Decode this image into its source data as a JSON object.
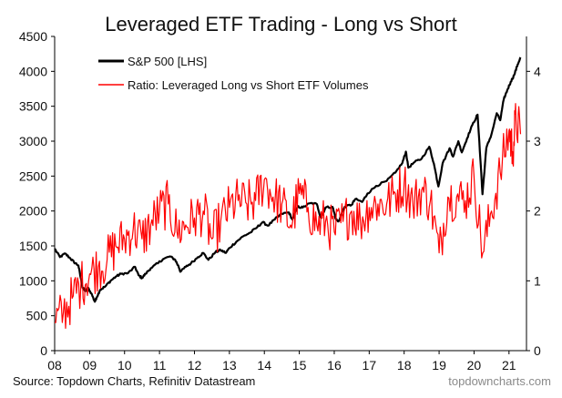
{
  "chart_data": {
    "type": "line",
    "title": "Leveraged ETF Trading - Long vs Short",
    "x_ticks": [
      "08",
      "09",
      "10",
      "11",
      "12",
      "13",
      "14",
      "15",
      "16",
      "17",
      "18",
      "19",
      "20",
      "21"
    ],
    "x_range": [
      2008.0,
      2021.5
    ],
    "y_left": {
      "ticks": [
        0,
        500,
        1000,
        1500,
        2000,
        2500,
        3000,
        3500,
        4000,
        4500
      ],
      "range": [
        0,
        4500
      ]
    },
    "y_right": {
      "ticks": [
        0,
        1,
        2,
        3,
        4
      ],
      "range": [
        0,
        4.5
      ]
    },
    "grid": false,
    "legend_placement": "top-left",
    "colors": {
      "sp500": "#000000",
      "ratio": "#ff0000"
    },
    "series": [
      {
        "name": "S&P 500 [LHS]",
        "axis": "left",
        "points": [
          [
            2008.0,
            1460
          ],
          [
            2008.15,
            1340
          ],
          [
            2008.3,
            1390
          ],
          [
            2008.45,
            1320
          ],
          [
            2008.55,
            1270
          ],
          [
            2008.68,
            1220
          ],
          [
            2008.75,
            1030
          ],
          [
            2008.8,
            900
          ],
          [
            2008.88,
            850
          ],
          [
            2008.95,
            900
          ],
          [
            2009.05,
            820
          ],
          [
            2009.15,
            700
          ],
          [
            2009.2,
            760
          ],
          [
            2009.3,
            870
          ],
          [
            2009.45,
            920
          ],
          [
            2009.6,
            1000
          ],
          [
            2009.75,
            1060
          ],
          [
            2009.9,
            1100
          ],
          [
            2010.1,
            1110
          ],
          [
            2010.3,
            1200
          ],
          [
            2010.4,
            1080
          ],
          [
            2010.5,
            1040
          ],
          [
            2010.6,
            1100
          ],
          [
            2010.75,
            1180
          ],
          [
            2010.95,
            1250
          ],
          [
            2011.1,
            1310
          ],
          [
            2011.3,
            1350
          ],
          [
            2011.45,
            1300
          ],
          [
            2011.55,
            1200
          ],
          [
            2011.6,
            1130
          ],
          [
            2011.75,
            1200
          ],
          [
            2011.9,
            1250
          ],
          [
            2012.1,
            1340
          ],
          [
            2012.25,
            1400
          ],
          [
            2012.4,
            1300
          ],
          [
            2012.6,
            1410
          ],
          [
            2012.75,
            1440
          ],
          [
            2012.9,
            1400
          ],
          [
            2013.0,
            1470
          ],
          [
            2013.2,
            1560
          ],
          [
            2013.4,
            1640
          ],
          [
            2013.6,
            1690
          ],
          [
            2013.8,
            1770
          ],
          [
            2013.95,
            1840
          ],
          [
            2014.1,
            1790
          ],
          [
            2014.3,
            1880
          ],
          [
            2014.5,
            1960
          ],
          [
            2014.7,
            1980
          ],
          [
            2014.8,
            1880
          ],
          [
            2014.95,
            2060
          ],
          [
            2015.1,
            2050
          ],
          [
            2015.3,
            2110
          ],
          [
            2015.5,
            2100
          ],
          [
            2015.62,
            1900
          ],
          [
            2015.75,
            2050
          ],
          [
            2015.95,
            2060
          ],
          [
            2016.05,
            1880
          ],
          [
            2016.12,
            1850
          ],
          [
            2016.3,
            2060
          ],
          [
            2016.5,
            2090
          ],
          [
            2016.6,
            2170
          ],
          [
            2016.8,
            2130
          ],
          [
            2016.95,
            2250
          ],
          [
            2017.2,
            2360
          ],
          [
            2017.5,
            2430
          ],
          [
            2017.75,
            2550
          ],
          [
            2017.95,
            2690
          ],
          [
            2018.05,
            2850
          ],
          [
            2018.12,
            2620
          ],
          [
            2018.3,
            2700
          ],
          [
            2018.5,
            2750
          ],
          [
            2018.72,
            2920
          ],
          [
            2018.85,
            2680
          ],
          [
            2018.98,
            2350
          ],
          [
            2019.1,
            2680
          ],
          [
            2019.3,
            2900
          ],
          [
            2019.4,
            2780
          ],
          [
            2019.55,
            3000
          ],
          [
            2019.65,
            2840
          ],
          [
            2019.8,
            3040
          ],
          [
            2019.95,
            3230
          ],
          [
            2020.1,
            3380
          ],
          [
            2020.2,
            2600
          ],
          [
            2020.24,
            2240
          ],
          [
            2020.35,
            2900
          ],
          [
            2020.5,
            3100
          ],
          [
            2020.65,
            3400
          ],
          [
            2020.75,
            3300
          ],
          [
            2020.85,
            3600
          ],
          [
            2020.95,
            3730
          ],
          [
            2021.05,
            3850
          ],
          [
            2021.15,
            3950
          ],
          [
            2021.25,
            4100
          ],
          [
            2021.33,
            4200
          ]
        ]
      },
      {
        "name": "Ratio: Leveraged Long vs Short ETF Volumes",
        "axis": "right",
        "points": [
          [
            2008.0,
            0.4
          ],
          [
            2008.25,
            0.55
          ],
          [
            2008.5,
            0.75
          ],
          [
            2008.75,
            0.95
          ],
          [
            2009.0,
            1.1
          ],
          [
            2009.25,
            1.2
          ],
          [
            2009.5,
            1.3
          ],
          [
            2009.75,
            1.5
          ],
          [
            2010.0,
            1.6
          ],
          [
            2010.25,
            1.75
          ],
          [
            2010.5,
            1.6
          ],
          [
            2010.75,
            1.8
          ],
          [
            2011.0,
            2.0
          ],
          [
            2011.25,
            2.1
          ],
          [
            2011.5,
            1.7
          ],
          [
            2011.75,
            1.8
          ],
          [
            2012.0,
            1.9
          ],
          [
            2012.25,
            2.0
          ],
          [
            2012.5,
            1.6
          ],
          [
            2012.75,
            1.85
          ],
          [
            2013.0,
            2.05
          ],
          [
            2013.25,
            2.15
          ],
          [
            2013.5,
            2.1
          ],
          [
            2013.75,
            2.15
          ],
          [
            2014.0,
            2.45
          ],
          [
            2014.25,
            2.2
          ],
          [
            2014.5,
            2.1
          ],
          [
            2014.75,
            1.8
          ],
          [
            2015.0,
            2.25
          ],
          [
            2015.25,
            2.05
          ],
          [
            2015.5,
            1.8
          ],
          [
            2015.75,
            1.85
          ],
          [
            2016.0,
            1.7
          ],
          [
            2016.25,
            1.85
          ],
          [
            2016.5,
            2.0
          ],
          [
            2016.75,
            1.85
          ],
          [
            2017.0,
            2.05
          ],
          [
            2017.25,
            2.1
          ],
          [
            2017.5,
            2.1
          ],
          [
            2017.75,
            2.25
          ],
          [
            2018.0,
            2.4
          ],
          [
            2018.25,
            2.1
          ],
          [
            2018.5,
            2.3
          ],
          [
            2018.75,
            2.15
          ],
          [
            2019.0,
            1.4
          ],
          [
            2019.25,
            2.2
          ],
          [
            2019.5,
            2.2
          ],
          [
            2019.75,
            2.15
          ],
          [
            2020.0,
            2.5
          ],
          [
            2020.25,
            1.4
          ],
          [
            2020.5,
            2.0
          ],
          [
            2020.75,
            2.55
          ],
          [
            2021.0,
            3.15
          ],
          [
            2021.1,
            2.85
          ],
          [
            2021.2,
            3.3
          ],
          [
            2021.33,
            3.1
          ]
        ]
      }
    ]
  },
  "source_text": "Source: Topdown Charts, Refinitiv Datastream",
  "site_text": "topdowncharts.com"
}
